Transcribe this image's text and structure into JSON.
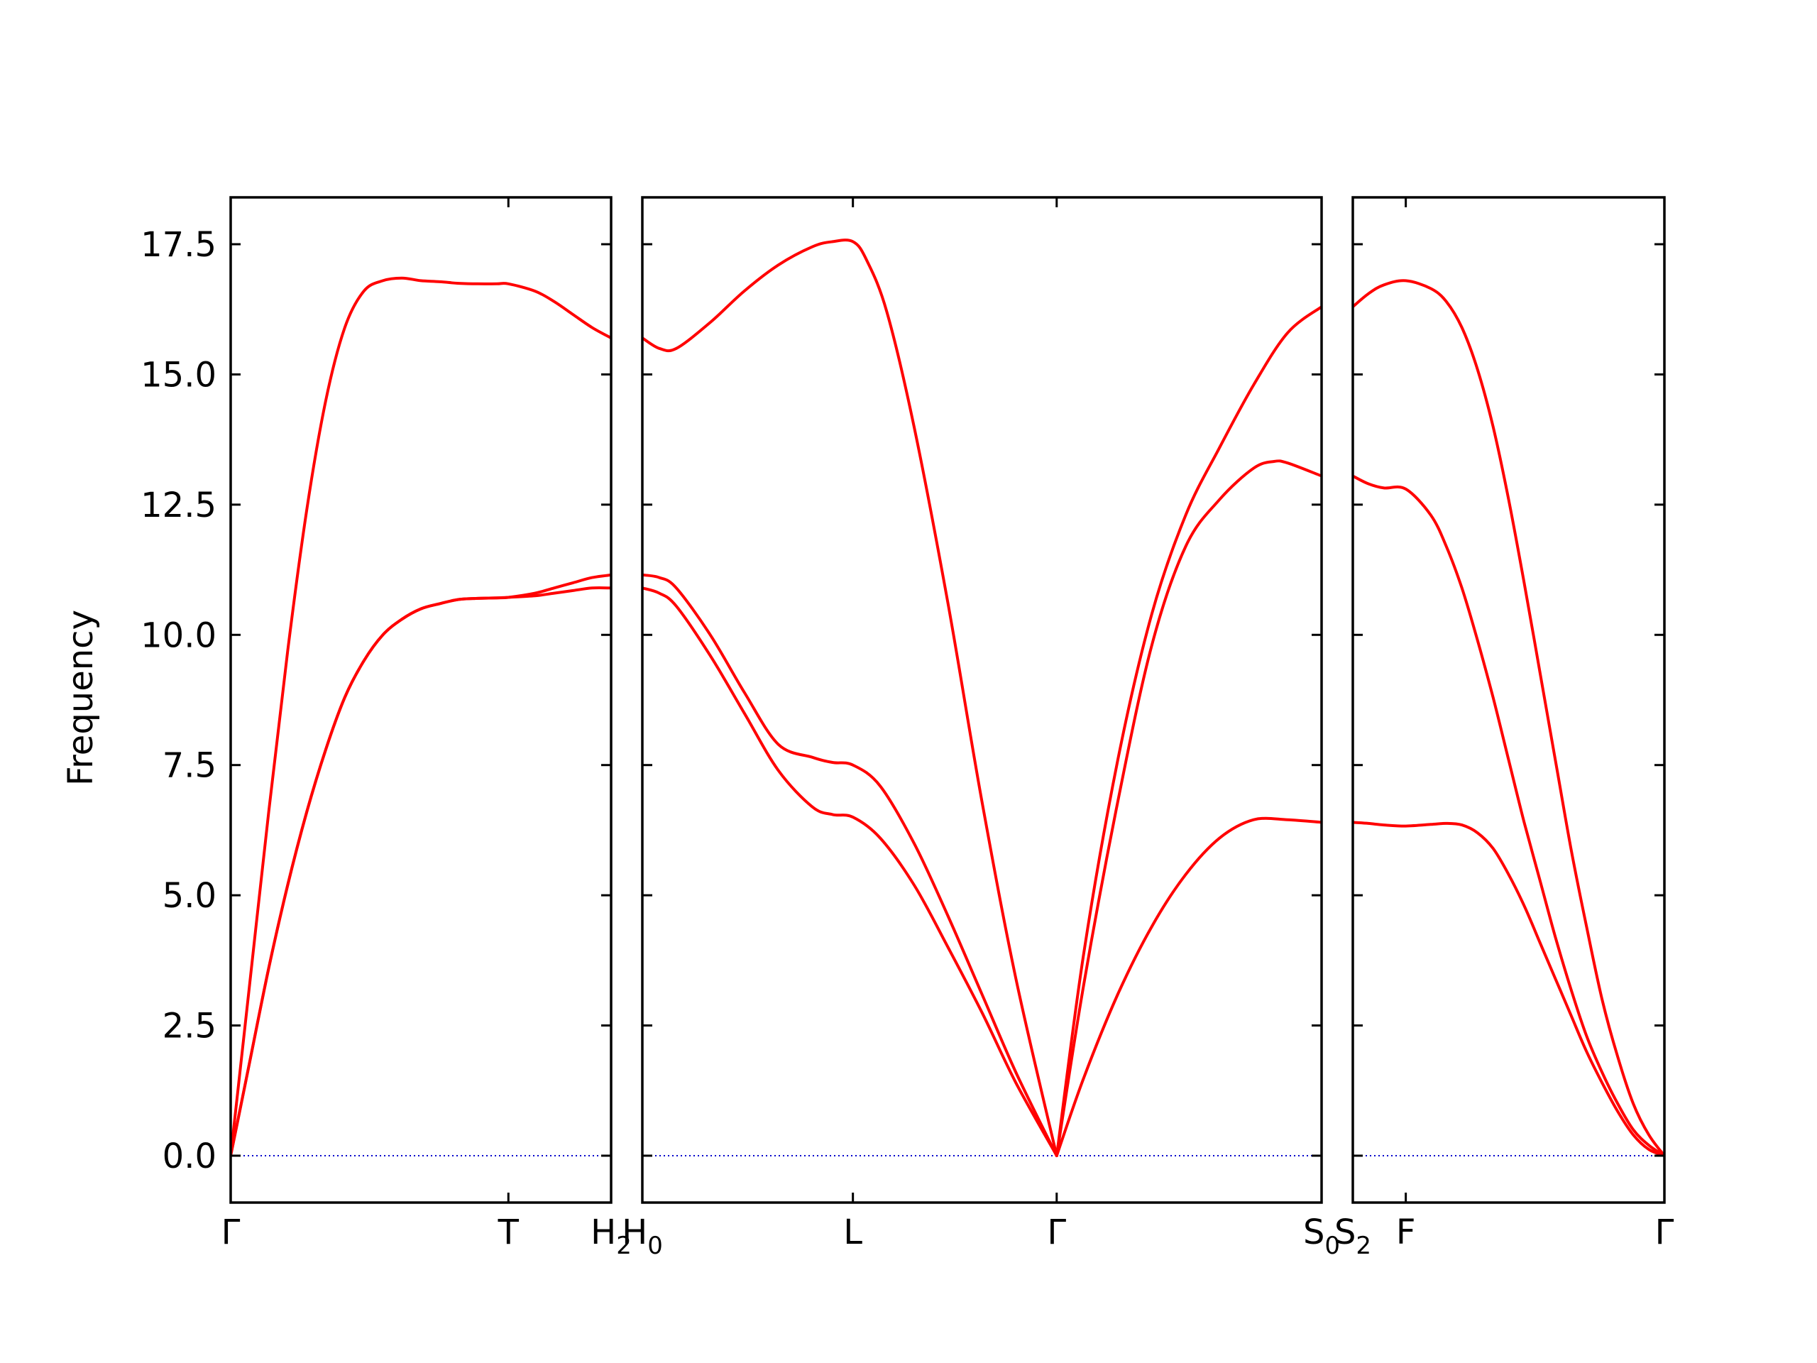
{
  "chart_data": {
    "type": "line",
    "ylabel": "Frequency",
    "ylim": [
      -0.9,
      18.4
    ],
    "yticks": [
      "0.0",
      "2.5",
      "5.0",
      "7.5",
      "10.0",
      "12.5",
      "15.0",
      "17.5"
    ],
    "ytick_values": [
      0,
      2.5,
      5,
      7.5,
      10,
      12.5,
      15,
      17.5
    ],
    "colors": {
      "bands": "#ff0000",
      "zero_line": "#0000cc",
      "frame": "#000000"
    },
    "panels": [
      {
        "name": "panel-1",
        "xlim": [
          0,
          1.0
        ],
        "xticks": [
          {
            "x": 0.0,
            "label": "Γ"
          },
          {
            "x": 0.73,
            "label": "T"
          },
          {
            "x": 1.0,
            "label": "H",
            "sub": "2"
          }
        ],
        "series": [
          {
            "x": [
              0,
              0.05,
              0.1,
              0.15,
              0.2,
              0.25,
              0.3,
              0.35,
              0.4,
              0.45,
              0.5,
              0.55,
              0.6,
              0.65,
              0.7,
              0.73,
              0.8,
              0.85,
              0.9,
              0.95,
              1.0
            ],
            "values": [
              0,
              3.3,
              6.6,
              9.7,
              12.4,
              14.5,
              15.9,
              16.6,
              16.8,
              16.85,
              16.8,
              16.78,
              16.75,
              16.74,
              16.74,
              16.74,
              16.6,
              16.4,
              16.15,
              15.9,
              15.7
            ]
          },
          {
            "x": [
              0,
              0.05,
              0.1,
              0.15,
              0.2,
              0.25,
              0.3,
              0.35,
              0.4,
              0.45,
              0.5,
              0.55,
              0.6,
              0.65,
              0.7,
              0.73,
              0.8,
              0.85,
              0.9,
              0.95,
              1.0
            ],
            "values": [
              0,
              1.8,
              3.6,
              5.2,
              6.6,
              7.8,
              8.8,
              9.5,
              10.0,
              10.3,
              10.5,
              10.6,
              10.68,
              10.7,
              10.71,
              10.72,
              10.8,
              10.9,
              11.0,
              11.1,
              11.15
            ]
          },
          {
            "x": [
              0,
              0.05,
              0.1,
              0.15,
              0.2,
              0.25,
              0.3,
              0.35,
              0.4,
              0.45,
              0.5,
              0.55,
              0.6,
              0.65,
              0.7,
              0.73,
              0.8,
              0.85,
              0.9,
              0.95,
              1.0
            ],
            "values": [
              0,
              1.8,
              3.6,
              5.2,
              6.6,
              7.8,
              8.8,
              9.5,
              10.0,
              10.3,
              10.5,
              10.6,
              10.68,
              10.7,
              10.71,
              10.72,
              10.75,
              10.8,
              10.85,
              10.9,
              10.9
            ]
          }
        ]
      },
      {
        "name": "panel-2",
        "xlim": [
          0,
          1.0
        ],
        "xticks": [
          {
            "x": 0.0,
            "label": "H",
            "sub": "0"
          },
          {
            "x": 0.31,
            "label": "L"
          },
          {
            "x": 0.61,
            "label": "Γ"
          },
          {
            "x": 1.0,
            "label": "S",
            "sub": "0"
          }
        ],
        "series": [
          {
            "x": [
              0,
              0.025,
              0.05,
              0.1,
              0.15,
              0.2,
              0.25,
              0.28,
              0.31,
              0.33,
              0.36,
              0.4,
              0.45,
              0.5,
              0.55,
              0.61
            ],
            "values": [
              15.7,
              15.5,
              15.5,
              16.0,
              16.6,
              17.1,
              17.45,
              17.55,
              17.55,
              17.2,
              16.2,
              14.0,
              10.6,
              6.8,
              3.4,
              0
            ]
          },
          {
            "x": [
              0.61,
              0.65,
              0.7,
              0.75,
              0.8,
              0.85,
              0.9,
              0.95,
              1.0
            ],
            "values": [
              0,
              3.9,
              7.6,
              10.4,
              12.3,
              13.6,
              14.8,
              15.8,
              16.3
            ]
          },
          {
            "x": [
              0.61,
              0.65,
              0.7,
              0.75,
              0.8,
              0.85,
              0.9,
              0.93,
              0.95,
              1.0
            ],
            "values": [
              0,
              3.3,
              6.8,
              9.8,
              11.7,
              12.6,
              13.2,
              13.33,
              13.3,
              13.05
            ]
          },
          {
            "x": [
              0.61,
              0.65,
              0.7,
              0.75,
              0.8,
              0.85,
              0.9,
              0.95,
              1.0
            ],
            "values": [
              0,
              1.5,
              3.1,
              4.4,
              5.4,
              6.1,
              6.45,
              6.45,
              6.4
            ]
          },
          {
            "x": [
              0,
              0.025,
              0.05,
              0.1,
              0.15,
              0.2,
              0.25,
              0.28,
              0.31,
              0.35,
              0.4,
              0.45,
              0.5,
              0.55,
              0.61
            ],
            "values": [
              11.15,
              11.1,
              10.9,
              10.0,
              8.9,
              7.9,
              7.65,
              7.55,
              7.5,
              7.1,
              6.0,
              4.6,
              3.1,
              1.6,
              0
            ]
          },
          {
            "x": [
              0,
              0.025,
              0.05,
              0.1,
              0.15,
              0.2,
              0.25,
              0.28,
              0.31,
              0.35,
              0.4,
              0.45,
              0.5,
              0.55,
              0.61
            ],
            "values": [
              10.9,
              10.8,
              10.55,
              9.6,
              8.5,
              7.4,
              6.7,
              6.55,
              6.5,
              6.1,
              5.2,
              4.0,
              2.75,
              1.4,
              0
            ]
          }
        ]
      },
      {
        "name": "panel-3",
        "xlim": [
          0,
          1.0
        ],
        "xticks": [
          {
            "x": 0.0,
            "label": "S",
            "sub": "2"
          },
          {
            "x": 0.17,
            "label": "F"
          },
          {
            "x": 1.0,
            "label": "Γ"
          }
        ],
        "series": [
          {
            "x": [
              0,
              0.05,
              0.1,
              0.17,
              0.25,
              0.3,
              0.35,
              0.4,
              0.45,
              0.5,
              0.55,
              0.6,
              0.65,
              0.7,
              0.75,
              0.8,
              0.85,
              0.9,
              0.95,
              1.0
            ],
            "values": [
              16.3,
              16.55,
              16.72,
              16.8,
              16.65,
              16.4,
              15.9,
              15.1,
              14.0,
              12.6,
              11.0,
              9.3,
              7.6,
              5.9,
              4.4,
              3.0,
              1.9,
              1.0,
              0.4,
              0
            ]
          },
          {
            "x": [
              0,
              0.05,
              0.1,
              0.17,
              0.25,
              0.3,
              0.35,
              0.4,
              0.45,
              0.5,
              0.55,
              0.6,
              0.65,
              0.7,
              0.75,
              0.8,
              0.85,
              0.9,
              0.95,
              1.0
            ],
            "values": [
              13.05,
              12.9,
              12.82,
              12.8,
              12.3,
              11.7,
              10.9,
              9.9,
              8.8,
              7.6,
              6.4,
              5.3,
              4.2,
              3.2,
              2.3,
              1.6,
              1.0,
              0.5,
              0.2,
              0
            ]
          },
          {
            "x": [
              0,
              0.05,
              0.1,
              0.17,
              0.25,
              0.3,
              0.35,
              0.4,
              0.45,
              0.5,
              0.55,
              0.6,
              0.65,
              0.7,
              0.75,
              0.8,
              0.85,
              0.9,
              0.95,
              1.0
            ],
            "values": [
              6.4,
              6.38,
              6.35,
              6.33,
              6.36,
              6.38,
              6.35,
              6.2,
              5.9,
              5.4,
              4.8,
              4.1,
              3.4,
              2.7,
              2.0,
              1.4,
              0.85,
              0.4,
              0.12,
              0
            ]
          }
        ]
      }
    ]
  }
}
